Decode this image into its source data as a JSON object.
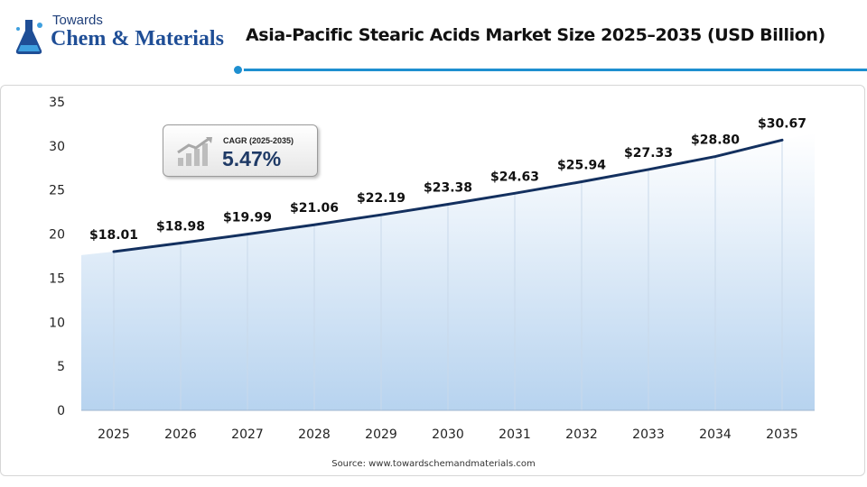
{
  "logo": {
    "top_text": "Towards",
    "main_text": "Chem & Materials"
  },
  "chart_data": {
    "type": "area",
    "title": "Asia-Pacific Stearic Acids Market Size 2025–2035 (USD Billion)",
    "xlabel": "",
    "ylabel": "",
    "categories": [
      "2025",
      "2026",
      "2027",
      "2028",
      "2029",
      "2030",
      "2031",
      "2032",
      "2033",
      "2034",
      "2035"
    ],
    "values": [
      18.01,
      18.98,
      19.99,
      21.06,
      22.19,
      23.38,
      24.63,
      25.94,
      27.33,
      28.8,
      30.67
    ],
    "data_labels": [
      "$18.01",
      "$18.98",
      "$19.99",
      "$21.06",
      "$22.19",
      "$23.38",
      "$24.63",
      "$25.94",
      "$27.33",
      "$28.80",
      "$30.67"
    ],
    "ylim": [
      0,
      35
    ],
    "yticks": [
      "0",
      "5",
      "10",
      "15",
      "20",
      "25",
      "30",
      "35"
    ],
    "grid": "vertical",
    "legend": "none",
    "colors": {
      "line": "#13305f",
      "fill_top": "#ffffff",
      "fill_bottom": "#b7d3ef",
      "accent": "#1e8fd0"
    }
  },
  "cagr": {
    "label": "CAGR (2025-2035)",
    "value": "5.47%",
    "icon": "growth-bars-icon"
  },
  "source": "Source: www.towardschemandmaterials.com"
}
